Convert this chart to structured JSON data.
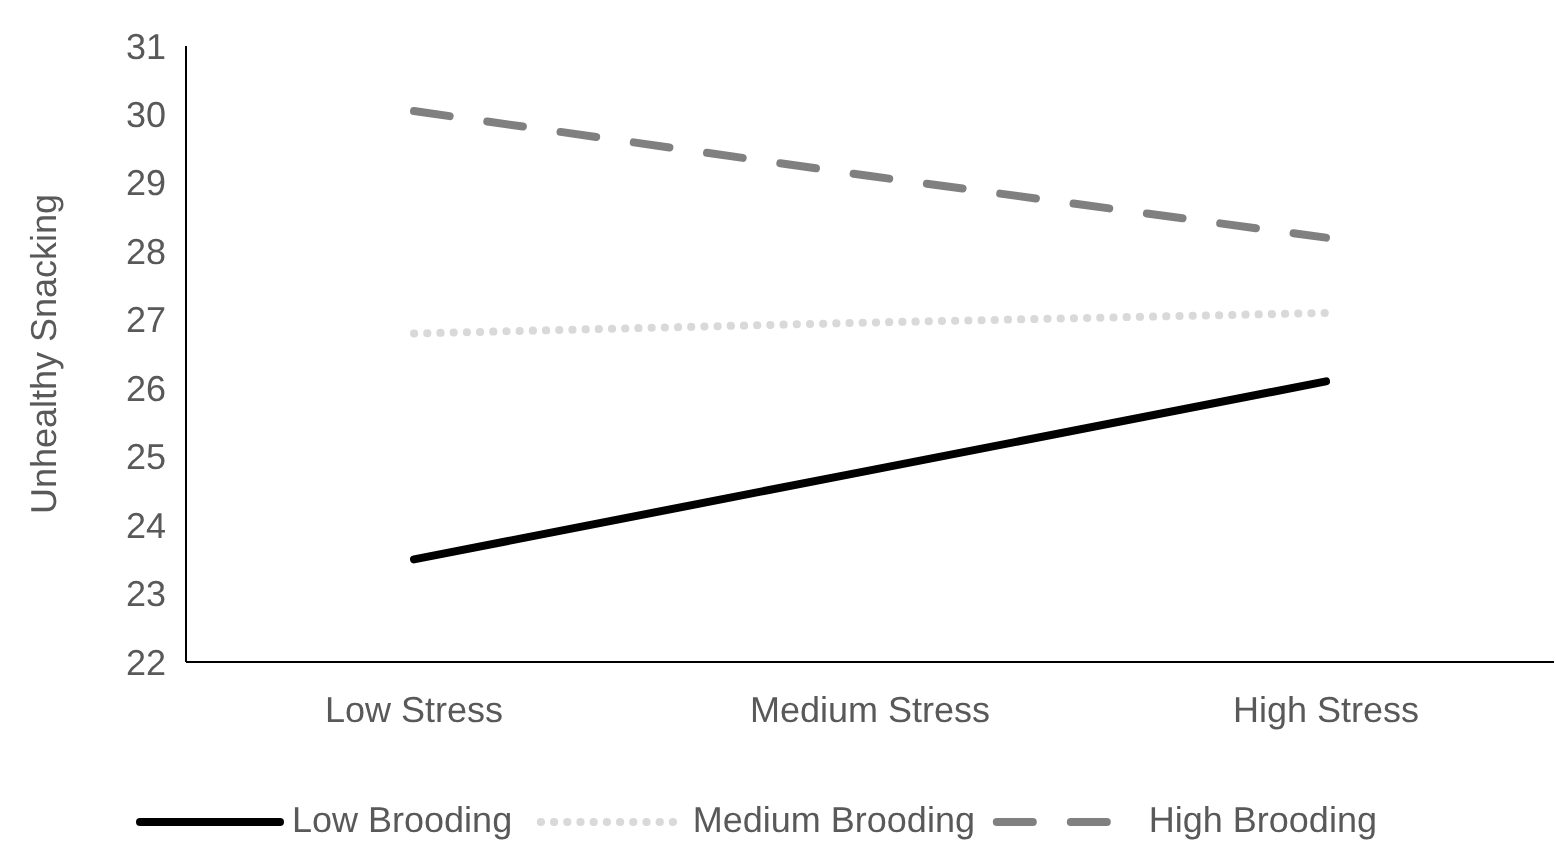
{
  "chart_data": {
    "type": "line",
    "ylabel": "Unhealthy Snacking",
    "categories": [
      "Low Stress",
      "Medium Stress",
      "High Stress"
    ],
    "ylim": [
      22,
      31
    ],
    "yticks": [
      22,
      23,
      24,
      25,
      26,
      27,
      28,
      29,
      30,
      31
    ],
    "grid": false,
    "legend": "bottom",
    "marker": "none",
    "series": [
      {
        "name": "Low Brooding",
        "color": "#000000",
        "line_style": "solid",
        "values": [
          23.5,
          24.8,
          26.1
        ]
      },
      {
        "name": "Medium Brooding",
        "color": "#d9d9d9",
        "line_style": "dotted",
        "values": [
          26.8,
          26.96,
          27.1
        ]
      },
      {
        "name": "High Brooding",
        "color": "#808080",
        "line_style": "dashed",
        "values": [
          30.05,
          29.1,
          28.2
        ]
      }
    ]
  }
}
